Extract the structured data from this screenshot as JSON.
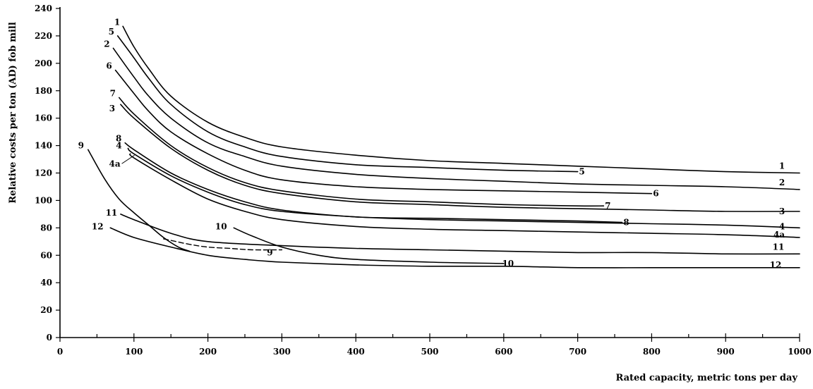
{
  "chart_data": {
    "type": "line",
    "title": "",
    "xlabel": "Rated capacity,  metric tons per day",
    "ylabel": "Relative costs per ton (AD) fob mill",
    "xlim": [
      0,
      1000
    ],
    "ylim": [
      0,
      240
    ],
    "xticks": [
      0,
      100,
      200,
      300,
      400,
      500,
      600,
      700,
      800,
      900,
      1000
    ],
    "yticks": [
      0,
      20,
      40,
      60,
      80,
      100,
      120,
      140,
      160,
      180,
      200,
      220,
      240
    ],
    "grid": false,
    "legend": "none",
    "series": [
      {
        "name": "1",
        "style": "solid",
        "points": [
          [
            85,
            227
          ],
          [
            100,
            212
          ],
          [
            120,
            196
          ],
          [
            150,
            176
          ],
          [
            200,
            157
          ],
          [
            250,
            146
          ],
          [
            300,
            139
          ],
          [
            400,
            133
          ],
          [
            500,
            129
          ],
          [
            600,
            127
          ],
          [
            700,
            125
          ],
          [
            800,
            123
          ],
          [
            900,
            121
          ],
          [
            1000,
            120
          ]
        ],
        "start_label": "1",
        "end_label": "1"
      },
      {
        "name": "5",
        "style": "solid",
        "points": [
          [
            78,
            220
          ],
          [
            100,
            204
          ],
          [
            120,
            189
          ],
          [
            150,
            170
          ],
          [
            200,
            150
          ],
          [
            250,
            139
          ],
          [
            300,
            132
          ],
          [
            400,
            126
          ],
          [
            500,
            124
          ],
          [
            600,
            122
          ],
          [
            700,
            121
          ]
        ],
        "start_label": "5",
        "end_label": "5"
      },
      {
        "name": "2",
        "style": "solid",
        "points": [
          [
            72,
            211
          ],
          [
            100,
            190
          ],
          [
            120,
            176
          ],
          [
            150,
            160
          ],
          [
            200,
            142
          ],
          [
            250,
            132
          ],
          [
            300,
            125
          ],
          [
            400,
            119
          ],
          [
            500,
            116
          ],
          [
            600,
            114
          ],
          [
            700,
            112
          ],
          [
            800,
            111
          ],
          [
            900,
            110
          ],
          [
            1000,
            108
          ]
        ],
        "start_label": "2",
        "end_label": "2"
      },
      {
        "name": "6",
        "style": "solid",
        "points": [
          [
            75,
            195
          ],
          [
            100,
            178
          ],
          [
            120,
            165
          ],
          [
            150,
            150
          ],
          [
            200,
            134
          ],
          [
            250,
            122
          ],
          [
            300,
            115
          ],
          [
            400,
            110
          ],
          [
            500,
            108
          ],
          [
            600,
            107
          ],
          [
            700,
            106
          ],
          [
            800,
            105
          ]
        ],
        "start_label": "6",
        "end_label": "6"
      },
      {
        "name": "7",
        "style": "solid",
        "points": [
          [
            80,
            175
          ],
          [
            100,
            163
          ],
          [
            150,
            140
          ],
          [
            200,
            124
          ],
          [
            250,
            113
          ],
          [
            300,
            107
          ],
          [
            400,
            101
          ],
          [
            500,
            99
          ],
          [
            600,
            97
          ],
          [
            700,
            96
          ],
          [
            735,
            96
          ]
        ],
        "start_label": "7",
        "end_label": "7"
      },
      {
        "name": "3",
        "style": "solid",
        "points": [
          [
            82,
            170
          ],
          [
            100,
            160
          ],
          [
            150,
            138
          ],
          [
            200,
            122
          ],
          [
            250,
            111
          ],
          [
            300,
            105
          ],
          [
            400,
            99
          ],
          [
            500,
            97
          ],
          [
            600,
            95
          ],
          [
            700,
            94
          ],
          [
            800,
            93
          ],
          [
            900,
            92
          ],
          [
            1000,
            92
          ]
        ],
        "start_label": "3",
        "end_label": "3"
      },
      {
        "name": "8",
        "style": "solid",
        "points": [
          [
            88,
            142
          ],
          [
            100,
            137
          ],
          [
            150,
            120
          ],
          [
            200,
            108
          ],
          [
            250,
            99
          ],
          [
            300,
            93
          ],
          [
            400,
            88
          ],
          [
            500,
            87
          ],
          [
            600,
            86
          ],
          [
            700,
            85
          ],
          [
            760,
            84
          ]
        ],
        "start_label": "8",
        "end_label": "8"
      },
      {
        "name": "4",
        "style": "solid",
        "points": [
          [
            92,
            138
          ],
          [
            100,
            134
          ],
          [
            150,
            118
          ],
          [
            200,
            106
          ],
          [
            250,
            97
          ],
          [
            300,
            92
          ],
          [
            400,
            88
          ],
          [
            500,
            86
          ],
          [
            600,
            85
          ],
          [
            700,
            84
          ],
          [
            800,
            83
          ],
          [
            900,
            82
          ],
          [
            1000,
            80
          ]
        ],
        "start_label": "4",
        "end_label": "4"
      },
      {
        "name": "4a",
        "style": "solid",
        "points": [
          [
            95,
            134
          ],
          [
            100,
            131
          ],
          [
            150,
            115
          ],
          [
            200,
            101
          ],
          [
            250,
            92
          ],
          [
            300,
            86
          ],
          [
            400,
            81
          ],
          [
            500,
            79
          ],
          [
            600,
            78
          ],
          [
            700,
            77
          ],
          [
            800,
            76
          ],
          [
            900,
            75
          ],
          [
            1000,
            73
          ]
        ],
        "start_label": "4a",
        "end_label": "4a"
      },
      {
        "name": "9",
        "style": "solid",
        "points": [
          [
            38,
            137
          ],
          [
            60,
            116
          ],
          [
            80,
            101
          ],
          [
            100,
            91
          ],
          [
            120,
            82
          ],
          [
            140,
            73
          ],
          [
            160,
            66
          ],
          [
            175,
            63
          ]
        ],
        "start_label": "9",
        "end_label": "9"
      },
      {
        "name": "9-dashed",
        "style": "dashed",
        "points": [
          [
            140,
            72
          ],
          [
            175,
            68
          ],
          [
            200,
            66
          ],
          [
            230,
            65
          ],
          [
            260,
            64
          ],
          [
            300,
            64
          ]
        ]
      },
      {
        "name": "11",
        "style": "solid",
        "points": [
          [
            82,
            90
          ],
          [
            100,
            86
          ],
          [
            150,
            76
          ],
          [
            200,
            70
          ],
          [
            300,
            67
          ],
          [
            400,
            65
          ],
          [
            500,
            64
          ],
          [
            600,
            63
          ],
          [
            700,
            62
          ],
          [
            800,
            62
          ],
          [
            900,
            61
          ],
          [
            1000,
            61
          ]
        ],
        "start_label": "11",
        "end_label": "11"
      },
      {
        "name": "10",
        "style": "solid",
        "points": [
          [
            235,
            80
          ],
          [
            260,
            74
          ],
          [
            300,
            66
          ],
          [
            350,
            60
          ],
          [
            400,
            57
          ],
          [
            500,
            55
          ],
          [
            600,
            54
          ]
        ],
        "start_label": "10",
        "end_label": "10"
      },
      {
        "name": "12",
        "style": "solid",
        "points": [
          [
            68,
            80
          ],
          [
            100,
            73
          ],
          [
            150,
            66
          ],
          [
            200,
            60
          ],
          [
            250,
            57
          ],
          [
            300,
            55
          ],
          [
            400,
            53
          ],
          [
            500,
            52
          ],
          [
            600,
            52
          ],
          [
            700,
            51
          ],
          [
            800,
            51
          ],
          [
            900,
            51
          ],
          [
            1000,
            51
          ]
        ],
        "start_label": "12",
        "end_label": "12"
      }
    ]
  }
}
